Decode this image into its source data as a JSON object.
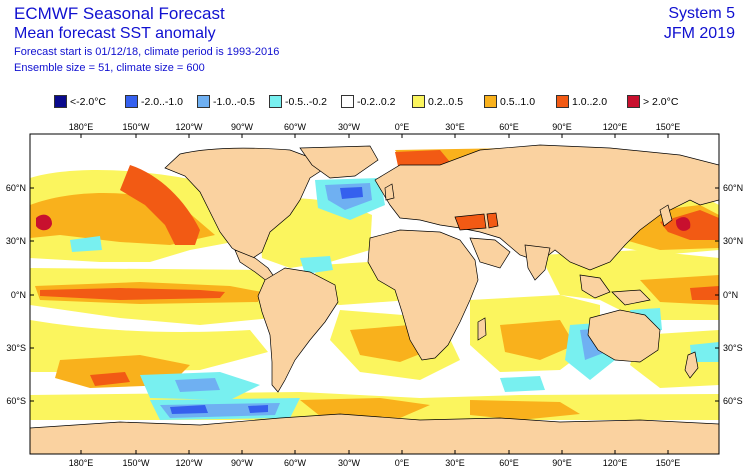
{
  "header": {
    "title": "ECMWF Seasonal Forecast",
    "subtitle": "Mean forecast SST anomaly",
    "forecast_info": "Forecast start is 01/12/18, climate period is 1993-2016",
    "ensemble_info": "Ensemble size = 51, climate size = 600",
    "system": "System 5",
    "period": "JFM 2019"
  },
  "legend": [
    {
      "label": "<-2.0°C",
      "color": "#0a0a8c"
    },
    {
      "label": "-2.0..-1.0",
      "color": "#3560ee"
    },
    {
      "label": "-1.0..-0.5",
      "color": "#6fb0f2"
    },
    {
      "label": "-0.5..-0.2",
      "color": "#78f0f0"
    },
    {
      "label": "-0.2..0.2",
      "color": "#ffffff"
    },
    {
      "label": "0.2..0.5",
      "color": "#fbf55e"
    },
    {
      "label": "0.5..1.0",
      "color": "#f9b11c"
    },
    {
      "label": "1.0..2.0",
      "color": "#f25a14"
    },
    {
      "label": "> 2.0°C",
      "color": "#c8102e"
    }
  ],
  "map": {
    "land_color": "#fad2a0",
    "lon_labels": [
      "180°E",
      "150°W",
      "120°W",
      "90°W",
      "60°W",
      "30°W",
      "0°E",
      "30°E",
      "60°E",
      "90°E",
      "120°E",
      "150°E"
    ],
    "lat_labels": [
      "60°N",
      "30°N",
      "0°N",
      "30°S",
      "60°S"
    ]
  }
}
